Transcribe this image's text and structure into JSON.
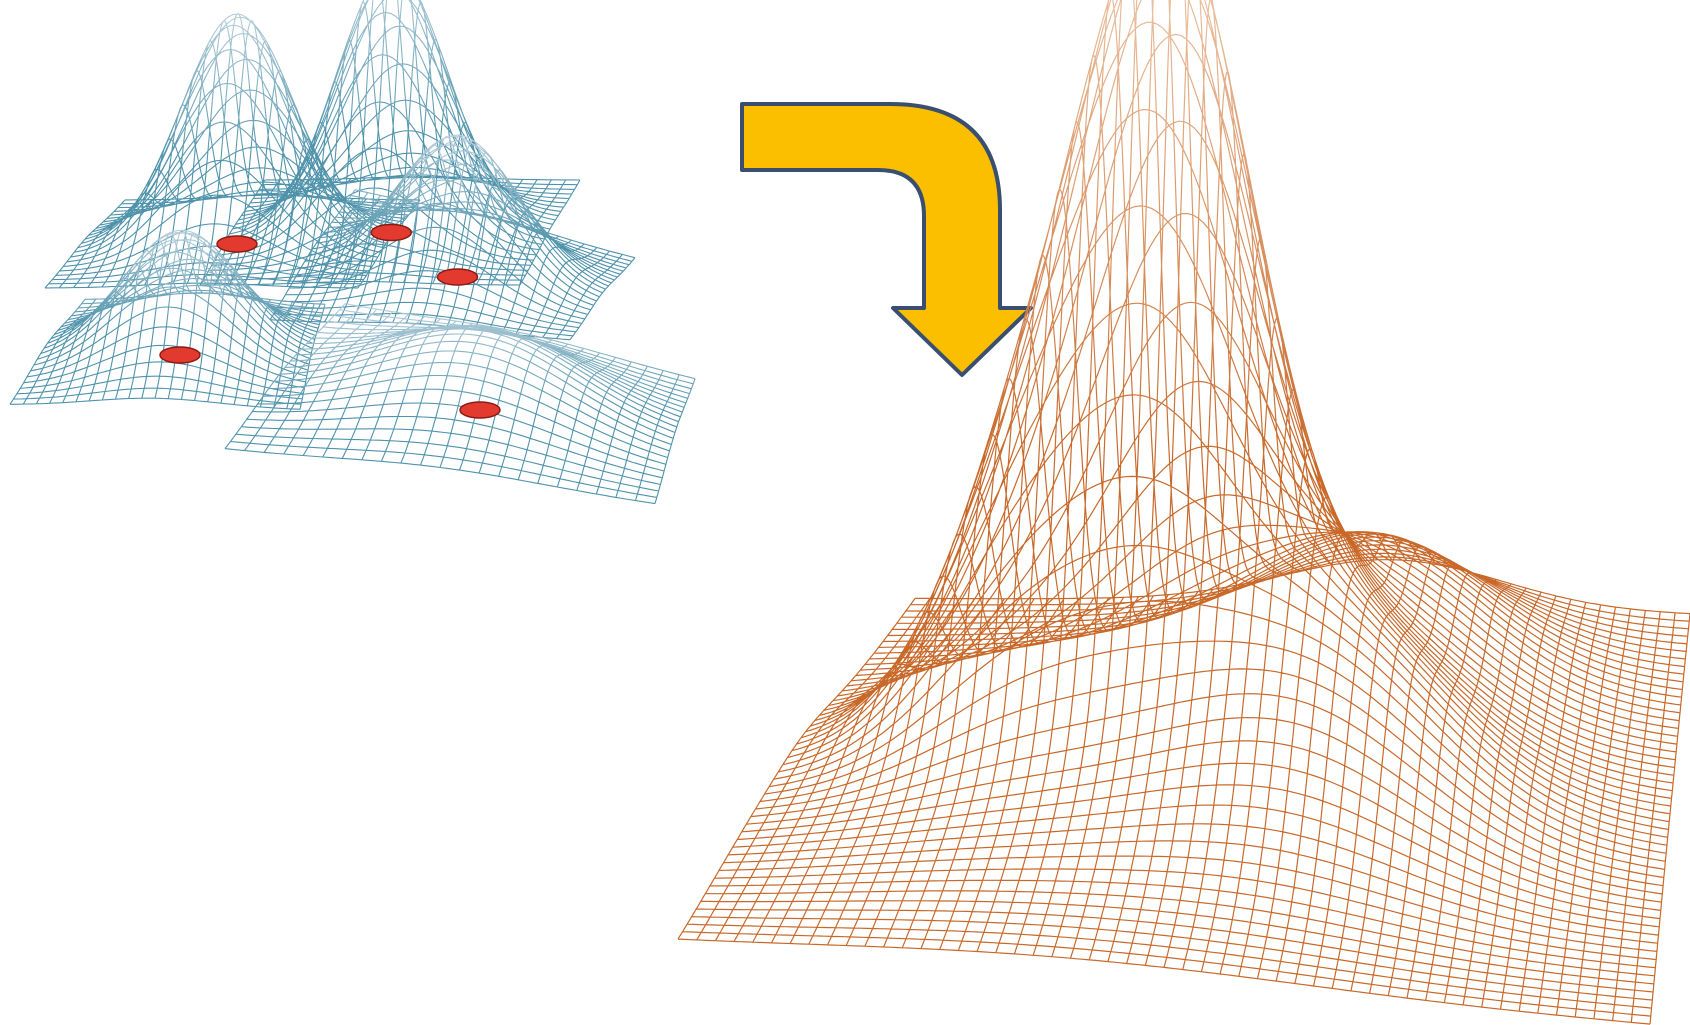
{
  "diagram": {
    "colors": {
      "background": "#ffffff",
      "kernel_mesh_light": "#b7cfdb",
      "kernel_mesh_dark": "#4f93ab",
      "sum_mesh_light": "#f2d2b8",
      "sum_mesh_dark": "#c8692a",
      "marker_fill": "#e23a2f",
      "marker_edge": "#8e1a14",
      "arrow_fill": "#fbbf00",
      "arrow_stroke": "#3a4f70"
    },
    "kernel_panels": [
      {
        "name": "kernel-panel-top-left",
        "peaks": [
          [
            0.5,
            0.5,
            1.0,
            0.18
          ]
        ]
      },
      {
        "name": "kernel-panel-top-middle",
        "peaks": [
          [
            0.5,
            0.5,
            1.0,
            0.17
          ]
        ]
      },
      {
        "name": "kernel-panel-top-right",
        "peaks": [
          [
            0.5,
            0.5,
            0.85,
            0.2
          ]
        ]
      },
      {
        "name": "kernel-panel-bottom-left",
        "peaks": [
          [
            0.5,
            0.5,
            0.7,
            0.22
          ]
        ]
      },
      {
        "name": "kernel-panel-bottom-right",
        "peaks": [
          [
            0.5,
            0.5,
            0.45,
            0.25
          ]
        ]
      }
    ],
    "combined_surface": {
      "peaks": [
        [
          0.42,
          0.42,
          1.0,
          0.09
        ],
        [
          0.28,
          0.46,
          0.46,
          0.1
        ],
        [
          0.6,
          0.56,
          0.25,
          0.14
        ],
        [
          0.62,
          0.2,
          0.2,
          0.14
        ],
        [
          0.38,
          0.58,
          0.12,
          0.25
        ]
      ]
    },
    "arrow": {
      "direction": "right-then-down",
      "icon": "curved-arrow-icon"
    }
  }
}
